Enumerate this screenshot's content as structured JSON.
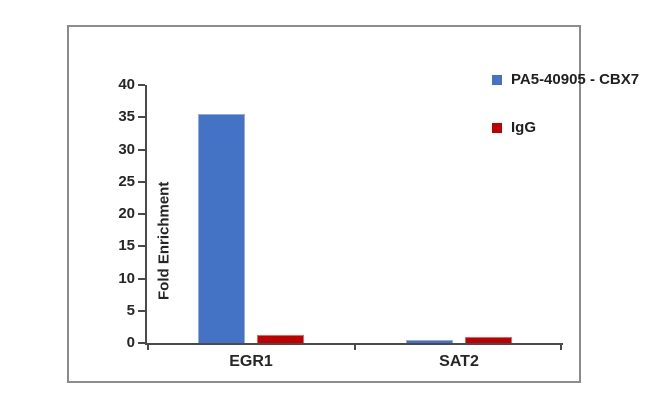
{
  "chart_data": {
    "type": "bar",
    "categories": [
      "EGR1",
      "SAT2"
    ],
    "series": [
      {
        "name": "PA5-40905 - CBX7",
        "color": "#4472C4",
        "border_color": "#93ACDB",
        "values": [
          35.5,
          0.5
        ]
      },
      {
        "name": "IgG",
        "color": "#C00000",
        "border_color": "#D46A64",
        "values": [
          1.2,
          1.0
        ]
      }
    ],
    "ylabel": "Fold Enrichment",
    "yticks": [
      0,
      5,
      10,
      15,
      20,
      25,
      30,
      35,
      40
    ],
    "ylim": [
      0,
      40
    ],
    "grid": false,
    "legend_position": "top-right"
  },
  "frame": {
    "border_color": "#8C8C8C"
  },
  "axis": {
    "color": "#4A4A4A",
    "label_color": "#262626"
  }
}
